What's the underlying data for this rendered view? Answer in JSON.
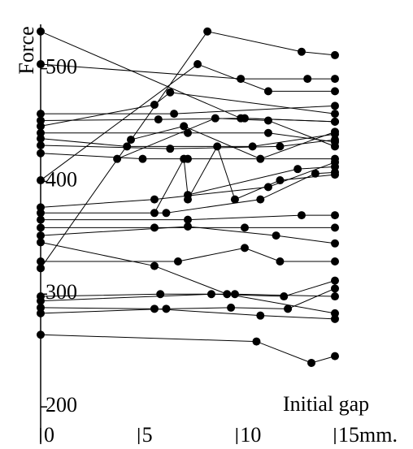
{
  "chart_data": {
    "type": "line",
    "x_label": "Initial gap",
    "y_label": "Force",
    "color": "#000000",
    "xlim": [
      0,
      15
    ],
    "ylim": [
      190,
      535
    ],
    "xticks": [
      0,
      5,
      10,
      {
        "value": 15,
        "label": "15mm."
      }
    ],
    "yticks": [
      200,
      300,
      400,
      500
    ],
    "series": [
      {
        "x": [
          0,
          10.2,
          15
        ],
        "values": [
          533,
          456,
          453
        ]
      },
      {
        "x": [
          0,
          10.2,
          13.6,
          15
        ],
        "values": [
          504,
          491,
          491,
          491
        ]
      },
      {
        "x": [
          0,
          8.5,
          13.3,
          15
        ],
        "values": [
          323,
          533,
          515,
          512
        ]
      },
      {
        "x": [
          0,
          8.0,
          11.6,
          15
        ],
        "values": [
          401,
          504,
          480,
          480
        ]
      },
      {
        "x": [
          0,
          6.8,
          15
        ],
        "values": [
          460,
          460,
          467
        ]
      },
      {
        "x": [
          0,
          6.0,
          10.4,
          15
        ],
        "values": [
          454,
          455,
          456,
          453
        ]
      },
      {
        "x": [
          0,
          5.8,
          6.6,
          15
        ],
        "values": [
          449,
          468,
          479,
          460
        ]
      },
      {
        "x": [
          0,
          7.5,
          11.6,
          15
        ],
        "values": [
          443,
          443,
          443,
          435
        ]
      },
      {
        "x": [
          0,
          4.4,
          10.8,
          15
        ],
        "values": [
          438,
          431,
          431,
          442
        ]
      },
      {
        "x": [
          0,
          6.6,
          12.2,
          15
        ],
        "values": [
          432,
          429,
          431,
          437
        ]
      },
      {
        "x": [
          0,
          5.2,
          7.5,
          15
        ],
        "values": [
          425,
          420,
          420,
          420
        ]
      },
      {
        "x": [
          0,
          5.8,
          11.6,
          15
        ],
        "values": [
          377,
          384,
          395,
          417
        ]
      },
      {
        "x": [
          0,
          6.4,
          11.2,
          14.0,
          15
        ],
        "values": [
          372,
          372,
          384,
          407,
          408
        ]
      },
      {
        "x": [
          0,
          7.5,
          13.3,
          15
        ],
        "values": [
          366,
          366,
          370,
          370
        ]
      },
      {
        "x": [
          0,
          5.8,
          10.4,
          15
        ],
        "values": [
          359,
          359,
          359,
          359
        ]
      },
      {
        "x": [
          0,
          7.5,
          12.0,
          15
        ],
        "values": [
          352,
          360,
          352,
          345
        ]
      },
      {
        "x": [
          0,
          5.8,
          9.5,
          15
        ],
        "values": [
          346,
          325,
          300,
          283
        ]
      },
      {
        "x": [
          0,
          7.0,
          10.4,
          12.2,
          15
        ],
        "values": [
          329,
          329,
          341,
          329,
          329
        ]
      },
      {
        "x": [
          0,
          6.1,
          9.9,
          15
        ],
        "values": [
          298,
          300,
          300,
          298
        ]
      },
      {
        "x": [
          0,
          8.7,
          12.4,
          15
        ],
        "values": [
          294,
          300,
          298,
          312
        ]
      },
      {
        "x": [
          0,
          5.8,
          11.2,
          15
        ],
        "values": [
          288,
          287,
          281,
          278
        ]
      },
      {
        "x": [
          0,
          6.4,
          9.7,
          12.6,
          15
        ],
        "values": [
          283,
          287,
          288,
          287,
          305
        ]
      },
      {
        "x": [
          0,
          11.0,
          13.8,
          15
        ],
        "values": [
          264,
          258,
          239,
          245
        ]
      },
      {
        "x": [
          3.9,
          8.9,
          11.6,
          15
        ],
        "values": [
          420,
          456,
          454,
          431
        ]
      },
      {
        "x": [
          4.6,
          7.3,
          11.2,
          15
        ],
        "values": [
          437,
          449,
          420,
          444
        ]
      },
      {
        "x": [
          5.8,
          7.3,
          7.5,
          13.1,
          15
        ],
        "values": [
          372,
          420,
          388,
          411,
          413
        ]
      },
      {
        "x": [
          7.5,
          9.0,
          9.9,
          12.2,
          15
        ],
        "values": [
          384,
          431,
          384,
          401,
          406
        ]
      }
    ]
  }
}
